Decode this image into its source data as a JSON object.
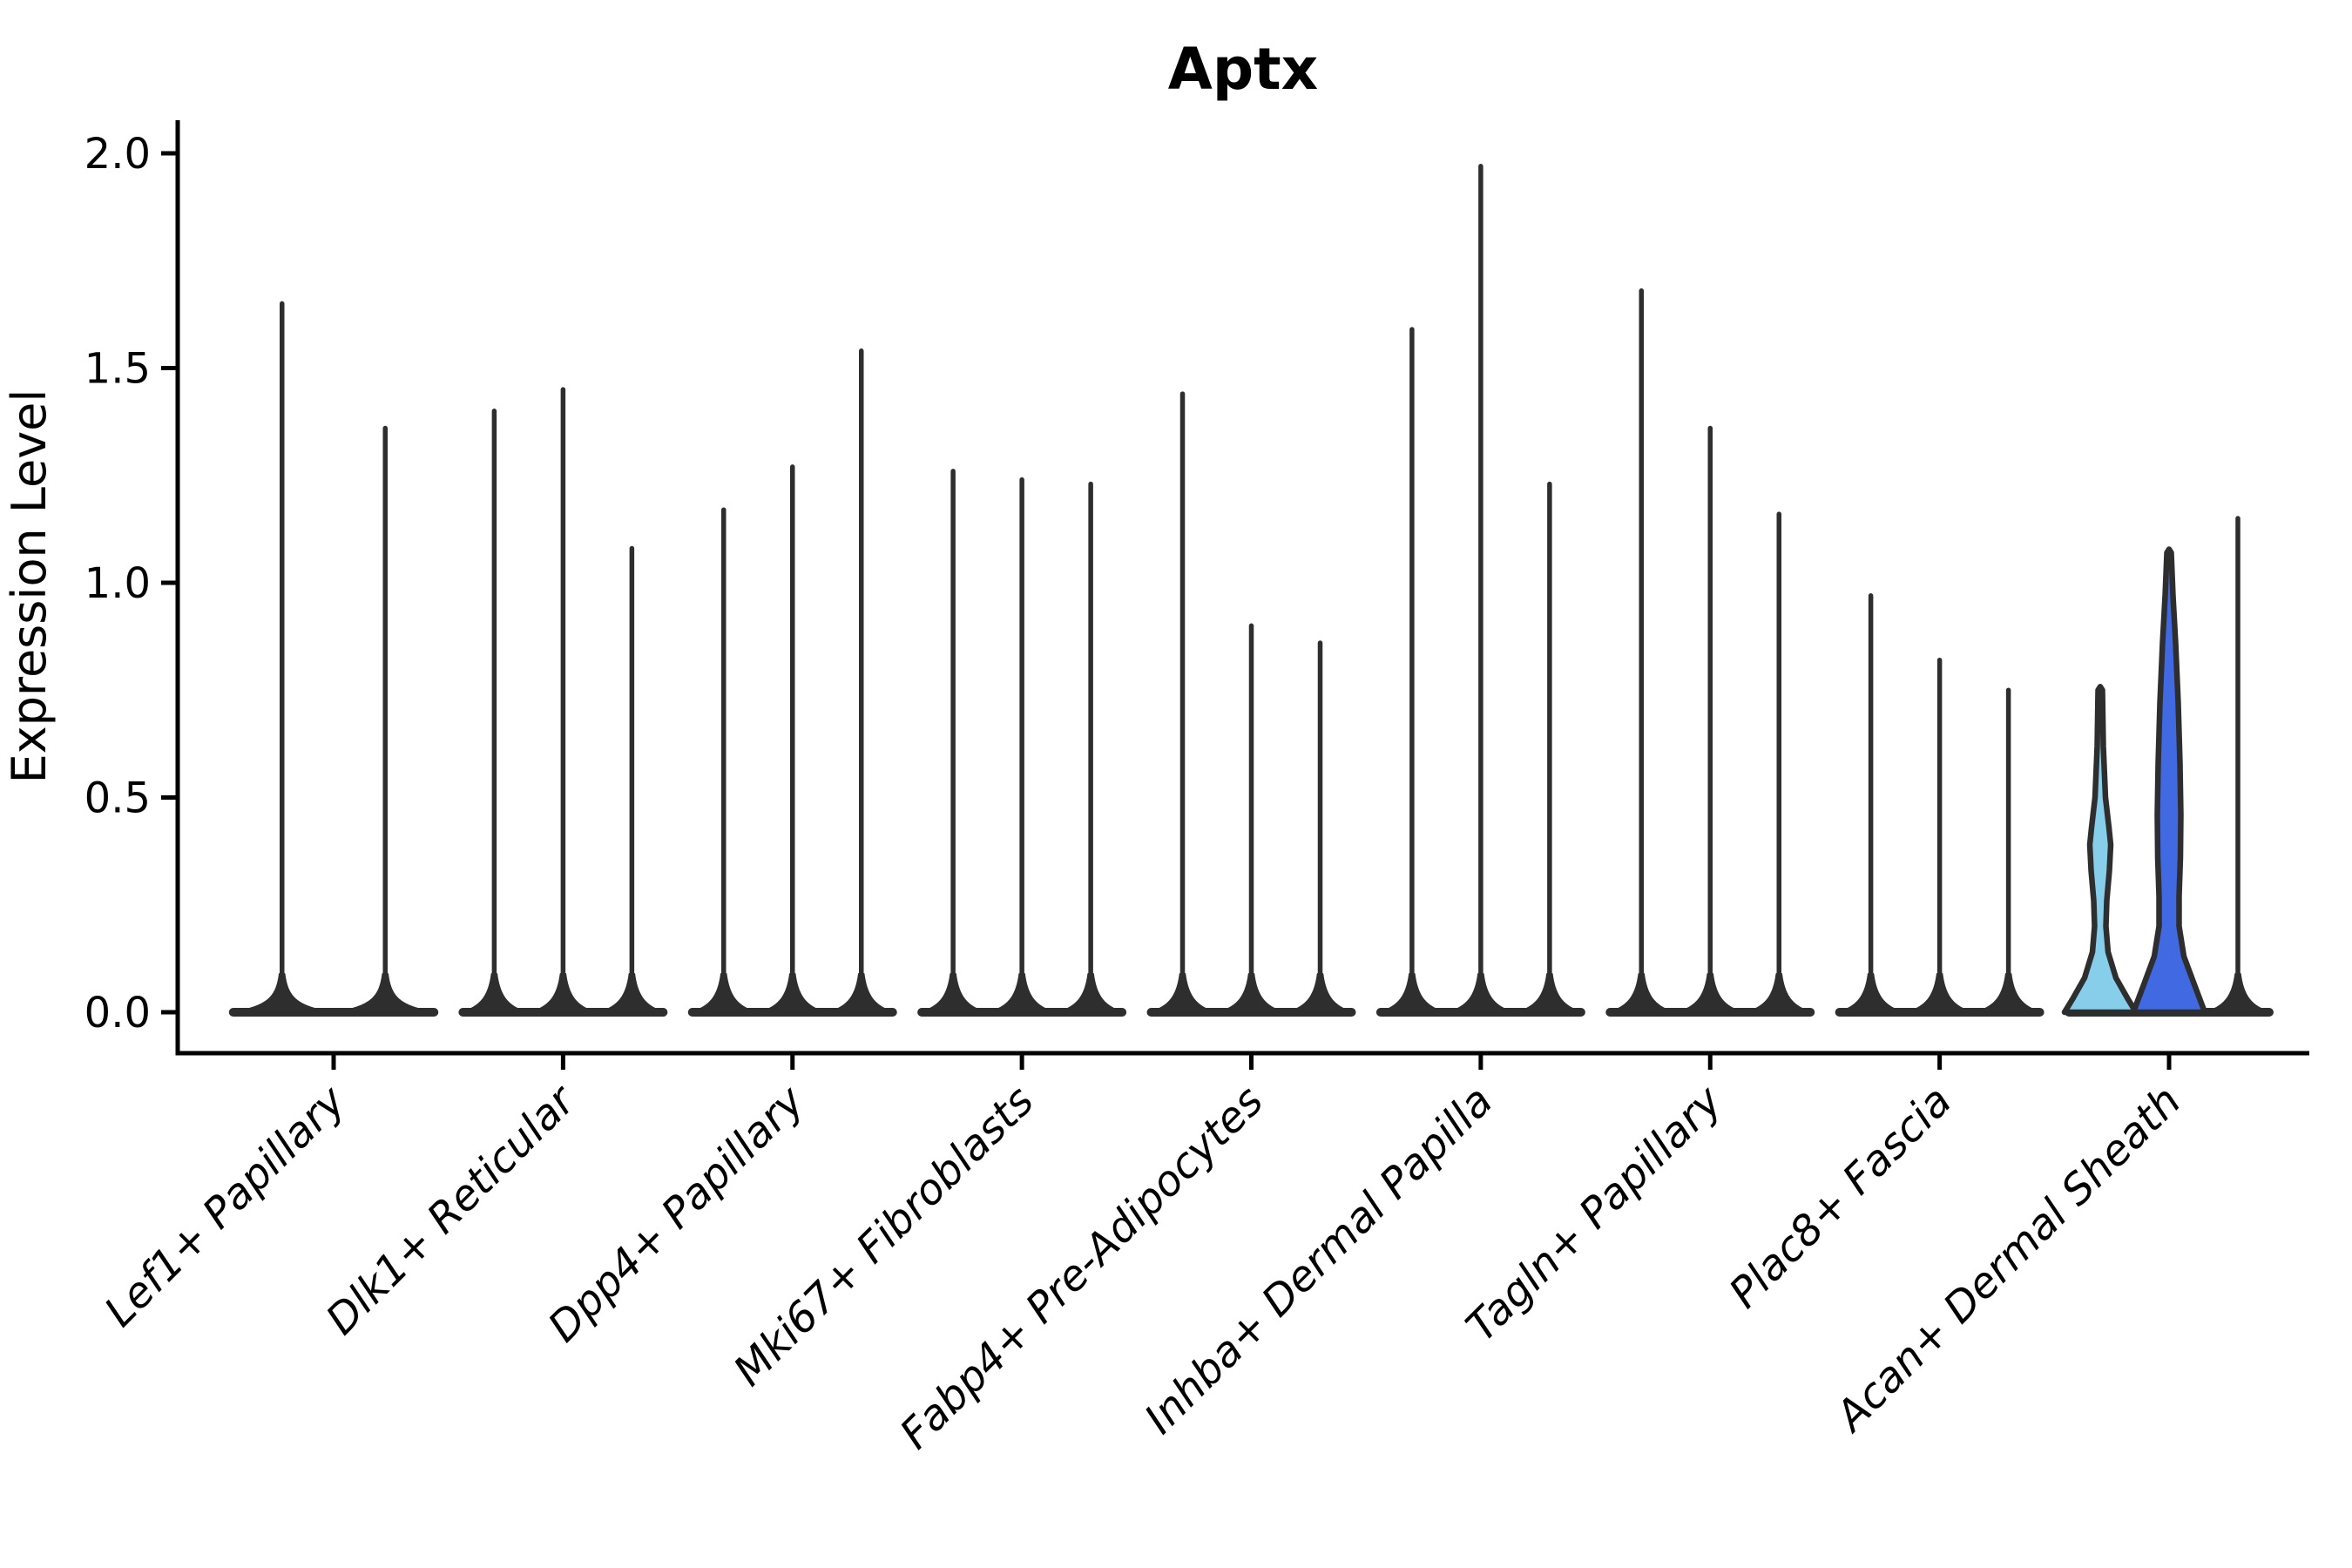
{
  "chart_data": {
    "type": "violin",
    "title": "Aptx",
    "xlabel": "",
    "ylabel": "Expression Level",
    "ytick_labels": [
      "0.0",
      "0.5",
      "1.0",
      "1.5",
      "2.0"
    ],
    "yticks": [
      0.0,
      0.5,
      1.0,
      1.5,
      2.0
    ],
    "ylim": [
      -0.1,
      2.08
    ],
    "grid": false,
    "legend": "none",
    "categories": [
      "Lef1+ Papillary",
      "Dlk1+ Reticular",
      "Dpp4+ Papillary",
      "Mki67+ Fibroblasts",
      "Fabp4+ Pre-Adipocytes",
      "Inhba+ Dermal Papilla",
      "Tagln+ Papillary",
      "Plac8+ Fascia",
      "Acan+ Dermal Sheath"
    ],
    "groups": [
      {
        "category": "Lef1+ Papillary",
        "violin_max_values": [
          1.65,
          1.36
        ]
      },
      {
        "category": "Dlk1+ Reticular",
        "violin_max_values": [
          1.4,
          1.45,
          1.08
        ]
      },
      {
        "category": "Dpp4+ Papillary",
        "violin_max_values": [
          1.17,
          1.27,
          1.54
        ]
      },
      {
        "category": "Mki67+ Fibroblasts",
        "violin_max_values": [
          1.26,
          1.24,
          1.23
        ]
      },
      {
        "category": "Fabp4+ Pre-Adipocytes",
        "violin_max_values": [
          1.44,
          0.9,
          0.86
        ]
      },
      {
        "category": "Inhba+ Dermal Papilla",
        "violin_max_values": [
          1.59,
          1.97,
          1.23
        ]
      },
      {
        "category": "Tagln+ Papillary",
        "violin_max_values": [
          1.68,
          1.36,
          1.16
        ]
      },
      {
        "category": "Plac8+ Fascia",
        "violin_max_values": [
          0.97,
          0.82,
          0.75
        ]
      },
      {
        "category": "Acan+ Dermal Sheath",
        "violin_max_values": [
          0.75,
          1.07,
          1.15
        ]
      }
    ],
    "highlighted_violins": [
      {
        "category": "Acan+ Dermal Sheath",
        "violin_index": 0,
        "fill": "#87CEEB",
        "max_value": 0.75,
        "density_profile": [
          [
            0.75,
            2.5
          ],
          [
            0.62,
            3.5
          ],
          [
            0.5,
            6
          ],
          [
            0.43,
            10
          ],
          [
            0.39,
            12
          ],
          [
            0.33,
            10.5
          ],
          [
            0.26,
            7.5
          ],
          [
            0.2,
            6.5
          ],
          [
            0.14,
            9
          ],
          [
            0.08,
            18
          ],
          [
            0.03,
            32
          ],
          [
            0.0,
            41
          ]
        ]
      },
      {
        "category": "Acan+ Dermal Sheath",
        "violin_index": 1,
        "fill": "#4169E1",
        "max_value": 1.07,
        "density_profile": [
          [
            1.07,
            2.5
          ],
          [
            0.97,
            4.5
          ],
          [
            0.86,
            7.5
          ],
          [
            0.72,
            10.5
          ],
          [
            0.58,
            12.5
          ],
          [
            0.46,
            13.5
          ],
          [
            0.36,
            13
          ],
          [
            0.27,
            11.5
          ],
          [
            0.2,
            11.5
          ],
          [
            0.13,
            17
          ],
          [
            0.07,
            28
          ],
          [
            0.0,
            41
          ]
        ]
      }
    ],
    "colors": {
      "violin_outline": "#2e2e2e",
      "axis": "#000000",
      "highlight_skyblue": "#87CEEB",
      "highlight_royalblue": "#4169E1",
      "background": "#ffffff"
    }
  }
}
